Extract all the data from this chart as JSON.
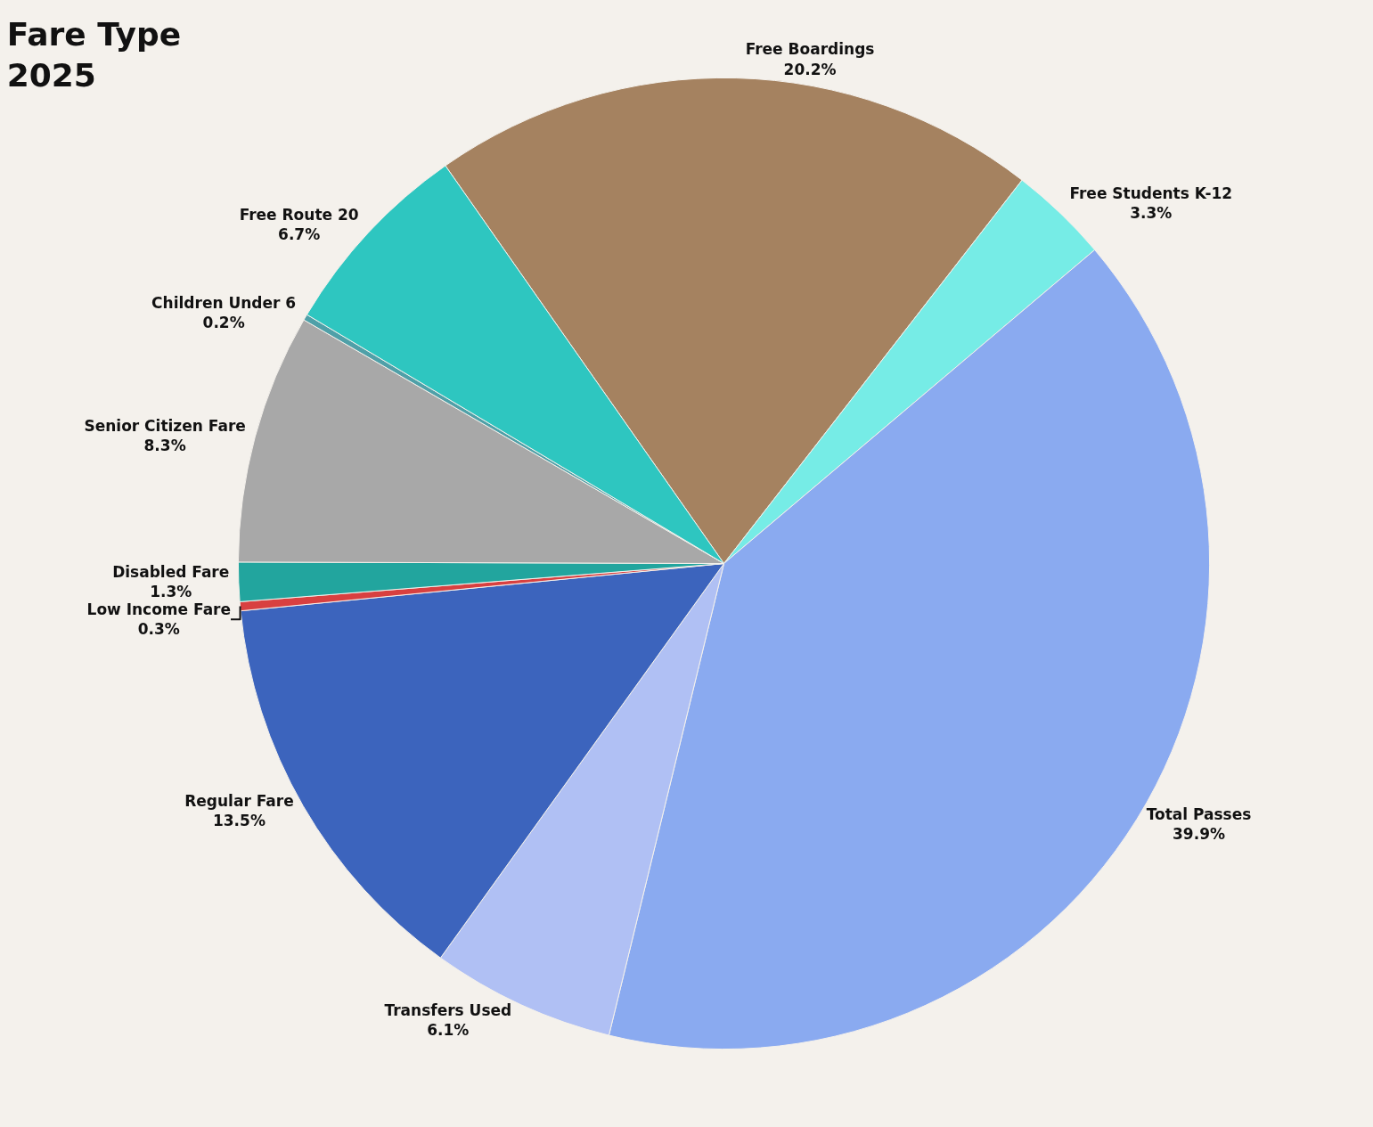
{
  "chart_data": {
    "type": "pie",
    "title": "Fare Type\n2025",
    "categories": [
      "Free Boardings",
      "Free Students K-12",
      "Total Passes",
      "Transfers Used",
      "Regular Fare",
      "Low Income Fare",
      "Disabled Fare",
      "Senior Citizen Fare",
      "Children Under 6",
      "Free Route 20"
    ],
    "values": [
      20.2,
      3.3,
      39.9,
      6.1,
      13.5,
      0.3,
      1.3,
      8.3,
      0.2,
      6.7
    ],
    "colors": [
      "#a58260",
      "#76ece6",
      "#8aaaf0",
      "#b0c0f4",
      "#3c64bd",
      "#d84040",
      "#22a59e",
      "#a8a8a8",
      "#4fa0a8",
      "#2ec6c0"
    ],
    "value_labels": [
      "20.2%",
      "3.3%",
      "39.9%",
      "6.1%",
      "13.5%",
      "0.3%",
      "1.3%",
      "8.3%",
      "0.2%",
      "6.7%"
    ],
    "legend": false
  }
}
